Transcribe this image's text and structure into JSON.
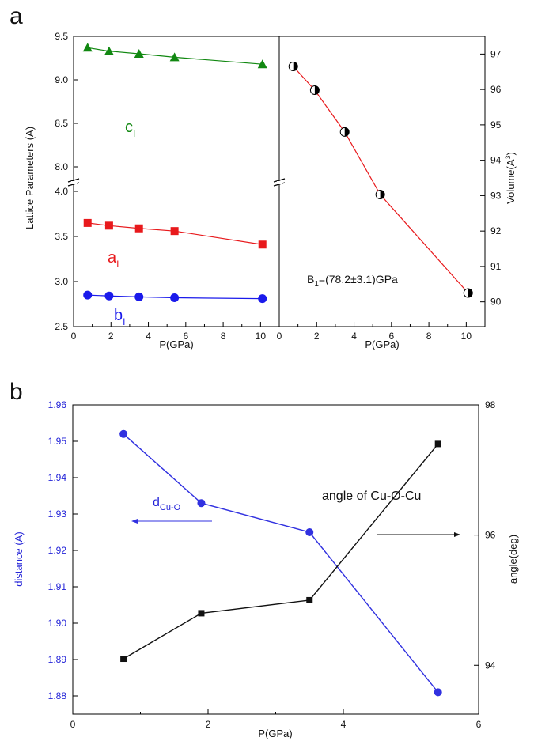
{
  "chart_data": [
    {
      "panel_label": "a",
      "type": "scatter",
      "xlabel": "P(GPa)",
      "ylabel": "Lattice Parameters (A)",
      "xlim": [
        0,
        11
      ],
      "x_ticks": [
        "0",
        "2",
        "4",
        "6",
        "8",
        "10"
      ],
      "y_broken": true,
      "ylim_lower": [
        2.5,
        4.0
      ],
      "ylim_upper": [
        7.8,
        9.5
      ],
      "y_ticks_lower": [
        "2.5",
        "3.0",
        "3.5",
        "4.0"
      ],
      "y_ticks_upper": [
        "8.0",
        "8.5",
        "9.0",
        "9.5"
      ],
      "series": [
        {
          "label_main": "c",
          "label_sub": "I",
          "color": "#118811",
          "marker": "triangle",
          "x": [
            0.75,
            1.9,
            3.5,
            5.4,
            10.1
          ],
          "y": [
            9.37,
            9.33,
            9.3,
            9.26,
            9.18
          ]
        },
        {
          "label_main": "a",
          "label_sub": "I",
          "color": "#e8191c",
          "marker": "square",
          "x": [
            0.75,
            1.9,
            3.5,
            5.4,
            10.1
          ],
          "y": [
            3.65,
            3.62,
            3.59,
            3.56,
            3.41
          ]
        },
        {
          "label_main": "b",
          "label_sub": "I",
          "color": "#1a1aeb",
          "marker": "circle",
          "x": [
            0.75,
            1.9,
            3.5,
            5.4,
            10.1
          ],
          "y": [
            2.85,
            2.84,
            2.83,
            2.82,
            2.81
          ]
        }
      ]
    },
    {
      "type": "scatter",
      "xlabel": "P(GPa)",
      "ylabel_main": "Volume(A",
      "ylabel_sup": "3",
      "ylabel_end": ")",
      "xlim": [
        0,
        11
      ],
      "ylim": [
        89.3,
        97.5
      ],
      "x_ticks": [
        "0",
        "2",
        "4",
        "6",
        "8",
        "10"
      ],
      "y_ticks": [
        "90",
        "91",
        "92",
        "93",
        "94",
        "95",
        "96",
        "97"
      ],
      "annotation": {
        "pre": "B",
        "sub": "1",
        "post": "=(78.2±3.1)GPa"
      },
      "fit_color": "#e8191c",
      "series": [
        {
          "marker": "half-filled-circle",
          "x": [
            0.75,
            1.9,
            3.5,
            5.4,
            10.1
          ],
          "y": [
            96.65,
            95.98,
            94.8,
            93.03,
            90.25
          ]
        }
      ]
    },
    {
      "panel_label": "b",
      "type": "line",
      "xlabel": "P(GPa)",
      "xlim": [
        0,
        6
      ],
      "x_ticks": [
        "0",
        "2",
        "4",
        "6"
      ],
      "ylabel_left": "distance (A)",
      "ylabel_right": "angle(deg)",
      "ylim_left": [
        1.875,
        1.96
      ],
      "ylim_right": [
        93.25,
        98
      ],
      "y_ticks_left": [
        "1.88",
        "1.89",
        "1.90",
        "1.91",
        "1.92",
        "1.93",
        "1.94",
        "1.95",
        "1.96"
      ],
      "y_ticks_right": [
        "94",
        "96",
        "98"
      ],
      "series": [
        {
          "label_main": "d",
          "label_sub": "Cu-O",
          "axis": "left",
          "color": "#3131e0",
          "marker": "circle",
          "x": [
            0.75,
            1.9,
            3.5,
            5.4
          ],
          "y": [
            1.952,
            1.933,
            1.925,
            1.881
          ]
        },
        {
          "label": "angle of Cu-O-Cu",
          "axis": "right",
          "color": "#111111",
          "marker": "square",
          "x": [
            0.75,
            1.9,
            3.5,
            5.4
          ],
          "y": [
            94.1,
            94.8,
            95.0,
            97.4
          ]
        }
      ]
    }
  ]
}
